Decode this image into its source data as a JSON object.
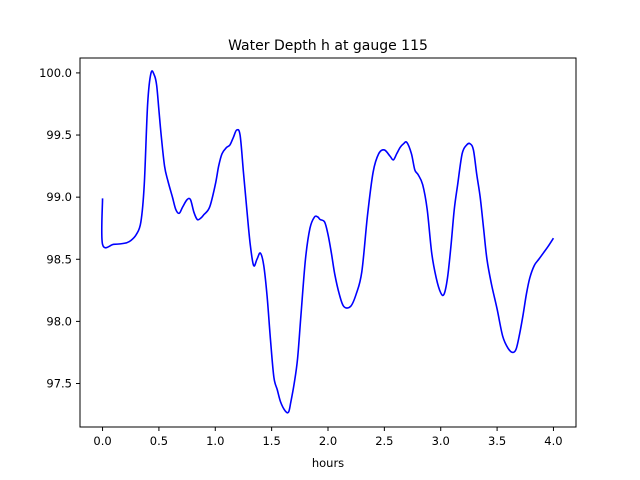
{
  "chart_data": {
    "type": "line",
    "title": "Water Depth h at gauge 115",
    "xlabel": "hours",
    "ylabel": "",
    "xlim": [
      -0.2,
      4.2
    ],
    "ylim": [
      97.15,
      100.12
    ],
    "xticks": [
      0.0,
      0.5,
      1.0,
      1.5,
      2.0,
      2.5,
      3.0,
      3.5,
      4.0
    ],
    "xtick_labels": [
      "0.0",
      "0.5",
      "1.0",
      "1.5",
      "2.0",
      "2.5",
      "3.0",
      "3.5",
      "4.0"
    ],
    "yticks": [
      97.5,
      98.0,
      98.5,
      99.0,
      99.5,
      100.0
    ],
    "ytick_labels": [
      "97.5",
      "98.0",
      "98.5",
      "99.0",
      "99.5",
      "100.0"
    ],
    "grid": false,
    "series": [
      {
        "color": "#0000ff",
        "x": [
          0.0,
          0.0,
          0.1,
          0.2,
          0.25,
          0.3,
          0.34,
          0.37,
          0.4,
          0.43,
          0.46,
          0.48,
          0.5,
          0.52,
          0.55,
          0.58,
          0.62,
          0.65,
          0.68,
          0.71,
          0.75,
          0.78,
          0.81,
          0.84,
          0.87,
          0.9,
          0.95,
          1.0,
          1.03,
          1.06,
          1.1,
          1.13,
          1.16,
          1.19,
          1.22,
          1.25,
          1.28,
          1.31,
          1.34,
          1.37,
          1.4,
          1.43,
          1.46,
          1.49,
          1.52,
          1.55,
          1.58,
          1.62,
          1.65,
          1.67,
          1.7,
          1.73,
          1.76,
          1.8,
          1.84,
          1.88,
          1.91,
          1.93,
          1.97,
          2.0,
          2.03,
          2.06,
          2.1,
          2.14,
          2.2,
          2.25,
          2.3,
          2.35,
          2.4,
          2.45,
          2.5,
          2.55,
          2.58,
          2.61,
          2.64,
          2.67,
          2.7,
          2.74,
          2.77,
          2.8,
          2.84,
          2.88,
          2.92,
          2.96,
          3.0,
          3.03,
          3.06,
          3.09,
          3.12,
          3.15,
          3.19,
          3.23,
          3.26,
          3.29,
          3.32,
          3.35,
          3.38,
          3.41,
          3.45,
          3.5,
          3.55,
          3.6,
          3.64,
          3.67,
          3.7,
          3.73,
          3.76,
          3.79,
          3.83,
          3.87,
          3.91,
          3.95,
          4.0
        ],
        "y": [
          98.99,
          98.62,
          98.62,
          98.63,
          98.65,
          98.7,
          98.8,
          99.1,
          99.75,
          100.0,
          99.98,
          99.9,
          99.7,
          99.5,
          99.25,
          99.13,
          99.0,
          98.9,
          98.87,
          98.92,
          98.98,
          98.98,
          98.88,
          98.82,
          98.83,
          98.86,
          98.92,
          99.1,
          99.25,
          99.35,
          99.4,
          99.42,
          99.48,
          99.54,
          99.5,
          99.2,
          98.9,
          98.62,
          98.45,
          98.5,
          98.55,
          98.45,
          98.2,
          97.85,
          97.55,
          97.45,
          97.35,
          97.28,
          97.27,
          97.35,
          97.5,
          97.7,
          98.05,
          98.5,
          98.75,
          98.84,
          98.84,
          98.82,
          98.8,
          98.7,
          98.55,
          98.38,
          98.22,
          98.12,
          98.12,
          98.22,
          98.4,
          98.85,
          99.2,
          99.35,
          99.38,
          99.33,
          99.3,
          99.35,
          99.4,
          99.43,
          99.44,
          99.35,
          99.22,
          99.18,
          99.1,
          98.9,
          98.55,
          98.35,
          98.23,
          98.22,
          98.35,
          98.6,
          98.9,
          99.1,
          99.35,
          99.42,
          99.43,
          99.38,
          99.18,
          99.0,
          98.75,
          98.5,
          98.3,
          98.1,
          97.88,
          97.78,
          97.75,
          97.78,
          97.9,
          98.05,
          98.22,
          98.35,
          98.45,
          98.5,
          98.55,
          98.6,
          98.67
        ]
      }
    ]
  }
}
